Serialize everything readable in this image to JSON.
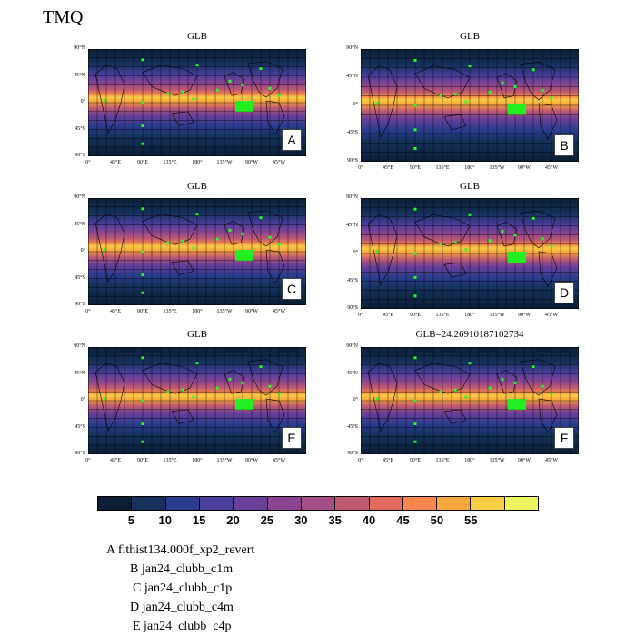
{
  "title": "TMQ",
  "panels": [
    {
      "title": "GLB",
      "tag": "A"
    },
    {
      "title": "GLB",
      "tag": "B"
    },
    {
      "title": "GLB",
      "tag": "C"
    },
    {
      "title": "GLB",
      "tag": "D"
    },
    {
      "title": "GLB",
      "tag": "E"
    },
    {
      "title": "GLB=24.26910187102734",
      "tag": "F"
    }
  ],
  "axes": {
    "lat_ticks": [
      "90°N",
      "45°N",
      "0°",
      "45°S",
      "90°S"
    ],
    "lon_ticks": [
      "0°",
      "45°E",
      "90°E",
      "135°E",
      "180°",
      "135°W",
      "90°W",
      "45°W"
    ]
  },
  "colorbar": {
    "colors": [
      "#0b1e34",
      "#15315c",
      "#2a3c8e",
      "#4b3f9e",
      "#6a3f9a",
      "#8b4590",
      "#a44e85",
      "#c05a72",
      "#e36b5d",
      "#f7874c",
      "#f9a63e",
      "#f8cc43",
      "#ecf560"
    ],
    "labels": [
      "5",
      "10",
      "15",
      "20",
      "25",
      "30",
      "35",
      "40",
      "45",
      "50",
      "55"
    ]
  },
  "legend": [
    "A  flthist134.000f_xp2_revert",
    "B  jan24_clubb_c1m",
    "C  jan24_clubb_c1p",
    "D  jan24_clubb_c4m",
    "E  jan24_clubb_c4p"
  ]
}
